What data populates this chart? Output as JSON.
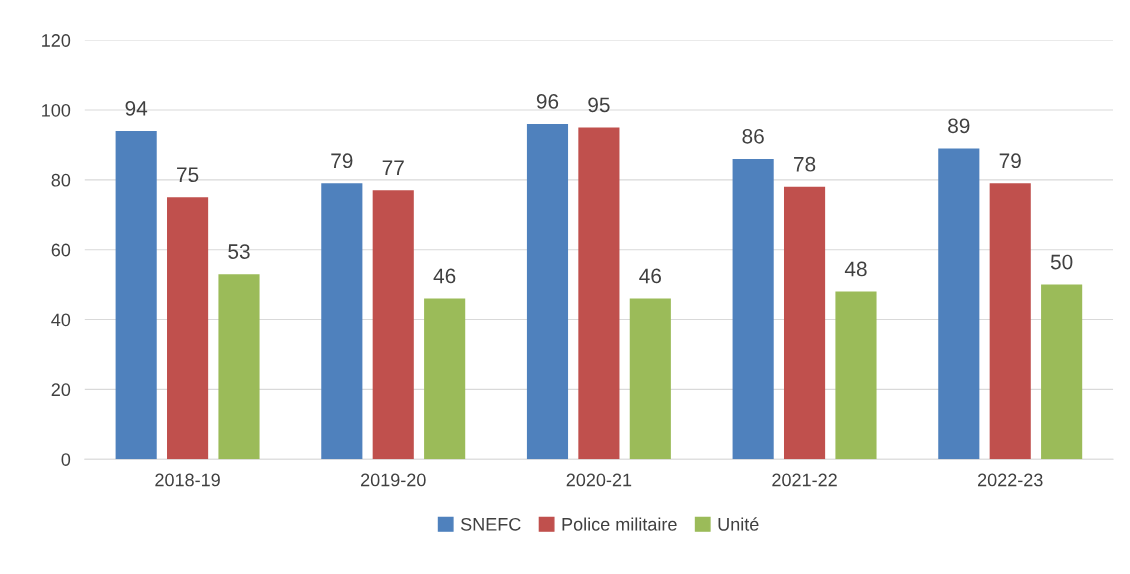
{
  "chart_data": {
    "type": "bar",
    "categories": [
      "2018-19",
      "2019-20",
      "2020-21",
      "2021-22",
      "2022-23"
    ],
    "series": [
      {
        "name": "SNEFC",
        "color": "#4f81bd",
        "values": [
          94,
          79,
          96,
          86,
          89
        ]
      },
      {
        "name": "Police militaire",
        "color": "#c0504d",
        "values": [
          75,
          77,
          95,
          78,
          79
        ]
      },
      {
        "name": "Unité",
        "color": "#9bbb59",
        "values": [
          53,
          46,
          46,
          48,
          50
        ]
      }
    ],
    "ylim": [
      0,
      120
    ],
    "yticks": [
      0,
      20,
      40,
      60,
      80,
      100,
      120
    ],
    "grid": "y",
    "legend": "bottom",
    "data_labels": true
  }
}
